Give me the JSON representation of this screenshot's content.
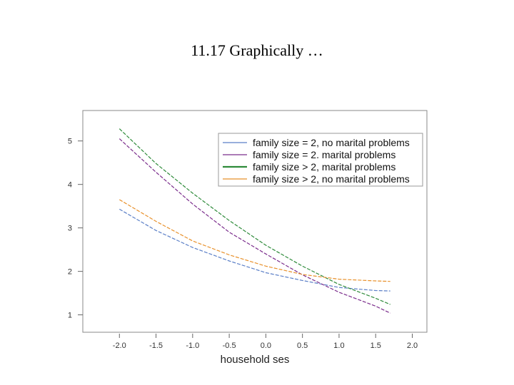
{
  "slide": {
    "title": "11.17 Graphically …"
  },
  "chart_data": {
    "type": "line",
    "title": "",
    "xlabel": "household ses",
    "ylabel": "",
    "xlim": [
      -2.5,
      2.2
    ],
    "ylim": [
      0.6,
      5.7
    ],
    "x_ticks": [
      -2.0,
      -1.5,
      -1.0,
      -0.5,
      0.0,
      0.5,
      1.0,
      1.5,
      2.0
    ],
    "x_tick_labels": [
      "-2.0",
      "-1.5",
      "-1.0",
      "-0.5",
      "0.0",
      "0.5",
      "1.0",
      "1.5",
      "2.0"
    ],
    "y_ticks": [
      1,
      2,
      3,
      4,
      5
    ],
    "y_tick_labels": [
      "1",
      "2",
      "3",
      "4",
      "5"
    ],
    "grid": false,
    "legend_position": "top-right",
    "series": [
      {
        "name": "family size = 2, no marital problems",
        "color": "#5b7fc7",
        "x": [
          -2.0,
          -1.5,
          -1.0,
          -0.5,
          0.0,
          0.5,
          1.0,
          1.5,
          1.7
        ],
        "y": [
          3.43,
          2.94,
          2.55,
          2.24,
          1.97,
          1.79,
          1.63,
          1.56,
          1.55
        ]
      },
      {
        "name": "family size = 2. marital problems",
        "color": "#7b2d8c",
        "x": [
          -2.0,
          -1.5,
          -1.0,
          -0.5,
          0.0,
          0.5,
          1.0,
          1.5,
          1.7
        ],
        "y": [
          5.05,
          4.28,
          3.55,
          2.9,
          2.4,
          1.92,
          1.52,
          1.2,
          1.04
        ]
      },
      {
        "name": "family size > 2, marital problems",
        "color": "#2e8b3a",
        "x": [
          -2.0,
          -1.5,
          -1.0,
          -0.5,
          0.0,
          0.5,
          1.0,
          1.5,
          1.7
        ],
        "y": [
          5.28,
          4.48,
          3.8,
          3.17,
          2.6,
          2.12,
          1.7,
          1.38,
          1.24
        ]
      },
      {
        "name": "family size > 2, no marital problems",
        "color": "#e8902a",
        "x": [
          -2.0,
          -1.5,
          -1.0,
          -0.5,
          0.0,
          0.5,
          1.0,
          1.5,
          1.7
        ],
        "y": [
          3.65,
          3.15,
          2.7,
          2.38,
          2.12,
          1.93,
          1.82,
          1.78,
          1.77
        ]
      }
    ]
  }
}
